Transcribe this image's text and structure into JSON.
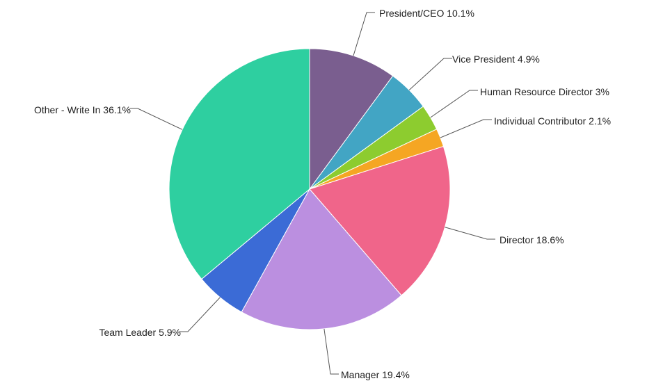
{
  "chart_data": {
    "type": "pie",
    "title": "",
    "slices": [
      {
        "name": "President/CEO",
        "value": 10.1,
        "label": "President/CEO 10.1%",
        "color": "#7a5e8f"
      },
      {
        "name": "Vice President",
        "value": 4.9,
        "label": "Vice President 4.9%",
        "color": "#42a5c4"
      },
      {
        "name": "Human Resource Director",
        "value": 3,
        "label": "Human Resource Director 3%",
        "color": "#8dcc2f"
      },
      {
        "name": "Individual Contributor",
        "value": 2.1,
        "label": "Individual Contributor 2.1%",
        "color": "#f5a623"
      },
      {
        "name": "Director",
        "value": 18.6,
        "label": "Director 18.6%",
        "color": "#f0658a"
      },
      {
        "name": "Manager",
        "value": 19.4,
        "label": "Manager 19.4%",
        "color": "#bb8fe0"
      },
      {
        "name": "Team Leader",
        "value": 5.9,
        "label": "Team Leader 5.9%",
        "color": "#3b6bd6"
      },
      {
        "name": "Other - Write In",
        "value": 36.1,
        "label": "Other - Write In 36.1%",
        "color": "#2ecfa0"
      }
    ]
  }
}
